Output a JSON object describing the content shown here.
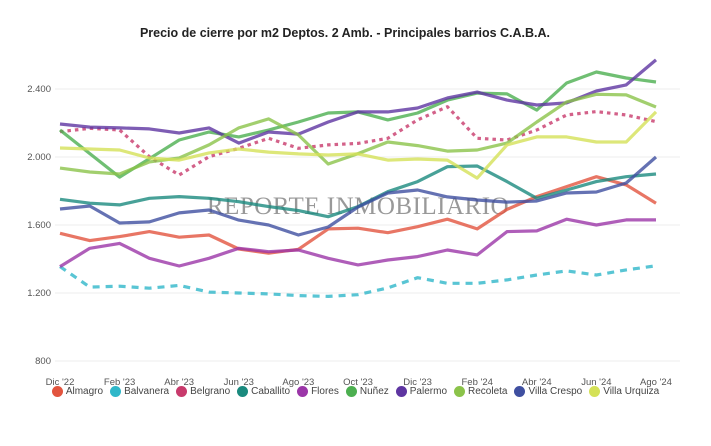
{
  "chart_data": {
    "type": "line",
    "title": "Precio de cierre por m2 Deptos. 2 Amb. - Principales barrios C.A.B.A.",
    "watermark": "REPORTE INMOBILIARIO",
    "xlabel": "",
    "ylabel": "",
    "ylim": [
      800,
      2600
    ],
    "yticks": [
      800,
      1200,
      1600,
      2000,
      2400
    ],
    "ytick_labels": [
      "800",
      "1.200",
      "1.600",
      "2.000",
      "2.400"
    ],
    "x": [
      "Dic '22",
      "Ene '23",
      "Feb '23",
      "Mar '23",
      "Abr '23",
      "May '23",
      "Jun '23",
      "Jul '23",
      "Ago '23",
      "Sep '23",
      "Oct '23",
      "Nov '23",
      "Dic '23",
      "Ene '24",
      "Feb '24",
      "Mar '24",
      "Abr '24",
      "May '24",
      "Jun '24",
      "Jul '24",
      "Ago '24"
    ],
    "xtick_labels": [
      "Dic '22",
      "Feb '23",
      "Abr '23",
      "Jun '23",
      "Ago '23",
      "Oct '23",
      "Dic '23",
      "Feb '24",
      "Abr '24",
      "Jun '24",
      "Ago '24"
    ],
    "grid": true,
    "legend_position": "bottom",
    "series": [
      {
        "name": "Almagro",
        "color": "#e2543e",
        "style": "solid",
        "values": [
          1551,
          1508,
          1532,
          1561,
          1528,
          1541,
          1459,
          1434,
          1457,
          1577,
          1581,
          1555,
          1590,
          1634,
          1577,
          1692,
          1767,
          1826,
          1884,
          1836,
          1728
        ]
      },
      {
        "name": "Balvanera",
        "color": "#2fb7c9",
        "style": "dashed",
        "values": [
          1355,
          1235,
          1240,
          1228,
          1245,
          1205,
          1200,
          1195,
          1185,
          1180,
          1190,
          1230,
          1290,
          1257,
          1257,
          1277,
          1306,
          1330,
          1306,
          1336,
          1360
        ]
      },
      {
        "name": "Belgrano",
        "color": "#c83a6c",
        "style": "dotted",
        "values": [
          2149,
          2169,
          2159,
          2002,
          1894,
          2002,
          2051,
          2110,
          2051,
          2071,
          2080,
          2110,
          2218,
          2296,
          2110,
          2100,
          2159,
          2247,
          2267,
          2247,
          2208
        ]
      },
      {
        "name": "Caballito",
        "color": "#1a8a7e",
        "style": "solid",
        "values": [
          1751,
          1728,
          1718,
          1757,
          1767,
          1757,
          1737,
          1708,
          1685,
          1649,
          1708,
          1796,
          1855,
          1943,
          1947,
          1855,
          1757,
          1806,
          1855,
          1884,
          1900
        ]
      },
      {
        "name": "Flores",
        "color": "#9b36a8",
        "style": "solid",
        "values": [
          1355,
          1463,
          1492,
          1404,
          1359,
          1404,
          1463,
          1443,
          1453,
          1404,
          1365,
          1394,
          1414,
          1453,
          1424,
          1561,
          1565,
          1634,
          1600,
          1630,
          1630
        ]
      },
      {
        "name": "Nuñez",
        "color": "#4caf50",
        "style": "solid",
        "values": [
          2159,
          2020,
          1882,
          1990,
          2100,
          2147,
          2118,
          2159,
          2206,
          2259,
          2265,
          2218,
          2259,
          2335,
          2376,
          2371,
          2276,
          2435,
          2500,
          2465,
          2441
        ]
      },
      {
        "name": "Palermo",
        "color": "#5e35a1",
        "style": "solid",
        "values": [
          2194,
          2176,
          2171,
          2165,
          2141,
          2171,
          2082,
          2147,
          2135,
          2206,
          2265,
          2265,
          2288,
          2347,
          2382,
          2335,
          2306,
          2318,
          2388,
          2424,
          2571
        ]
      },
      {
        "name": "Recoleta",
        "color": "#8bc34a",
        "style": "solid",
        "values": [
          1935,
          1912,
          1900,
          1971,
          1994,
          2071,
          2171,
          2224,
          2130,
          1959,
          2020,
          2088,
          2067,
          2035,
          2041,
          2082,
          2206,
          2324,
          2369,
          2365,
          2294
        ]
      },
      {
        "name": "Villa Crespo",
        "color": "#3f4fa0",
        "style": "solid",
        "values": [
          1694,
          1712,
          1612,
          1618,
          1671,
          1688,
          1629,
          1600,
          1541,
          1588,
          1706,
          1788,
          1806,
          1765,
          1747,
          1735,
          1741,
          1788,
          1794,
          1847,
          2000
        ]
      },
      {
        "name": "Villa Urquiza",
        "color": "#d4e157",
        "style": "solid",
        "values": [
          2053,
          2047,
          2041,
          1994,
          1982,
          2024,
          2047,
          2029,
          2018,
          2012,
          2018,
          1982,
          1988,
          1982,
          1876,
          2071,
          2118,
          2118,
          2088,
          2088,
          2265
        ]
      }
    ]
  }
}
